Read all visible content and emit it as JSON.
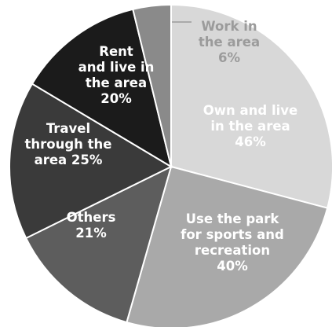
{
  "chart_data": {
    "type": "pie",
    "title": "",
    "slices": [
      {
        "label": [
          "Own and live",
          "in the area",
          "46%"
        ],
        "value": 46,
        "color": "#d8d8d8",
        "text_color": "#ffffff"
      },
      {
        "label": [
          "Use the park",
          "for sports and",
          "recreation",
          "40%"
        ],
        "value": 40,
        "color": "#a9a9a9",
        "text_color": "#ffffff"
      },
      {
        "label": [
          "Others",
          "21%"
        ],
        "value": 21,
        "color": "#5d5d5d",
        "text_color": "#ffffff"
      },
      {
        "label": [
          "Travel",
          "through the",
          "area 25%"
        ],
        "value": 25,
        "color": "#3a3a3a",
        "text_color": "#ffffff"
      },
      {
        "label": [
          "Rent",
          "and live in",
          "the area",
          "20%"
        ],
        "value": 20,
        "color": "#1b1b1b",
        "text_color": "#ffffff"
      },
      {
        "label": [
          "Work in",
          "the area",
          "6%"
        ],
        "value": 6,
        "color": "#8a8a8a",
        "text_color": "#9b9b9b"
      }
    ],
    "legend": "none"
  }
}
